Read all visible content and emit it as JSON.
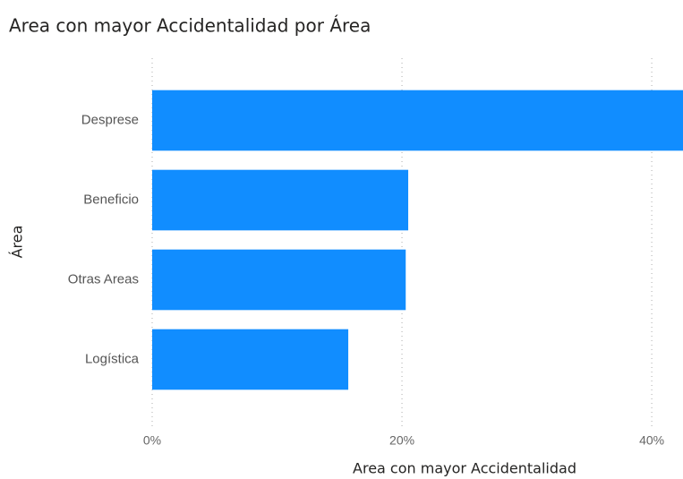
{
  "chart_data": {
    "type": "hbar",
    "title": "Area con mayor Accidentalidad por Área",
    "xlabel": "Area con mayor Accidentalidad",
    "ylabel": "Área",
    "categories": [
      "Desprese",
      "Beneficio",
      "Otras Areas",
      "Logística"
    ],
    "values": [
      42.5,
      20.5,
      20.3,
      15.7
    ],
    "color": "#118dff",
    "xlim": [
      0,
      42.5
    ],
    "xticks": [
      {
        "value": 0,
        "label": "0%"
      },
      {
        "value": 20,
        "label": "20%"
      },
      {
        "value": 40,
        "label": "40%"
      }
    ],
    "grid": true
  }
}
